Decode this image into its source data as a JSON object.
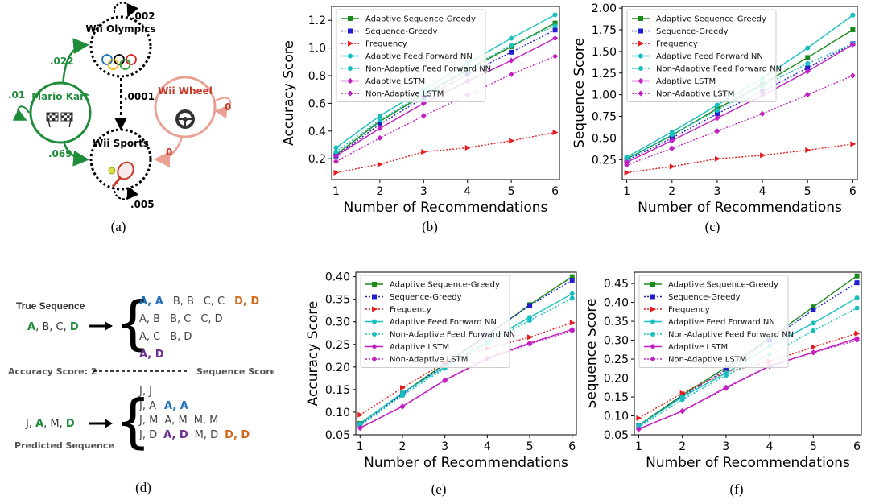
{
  "colors": {
    "green": "#1f8c3a",
    "salmon": "#e8a193",
    "red_label": "#c43b2b",
    "blue_pair": "#1f6fb5",
    "purple_pair": "#6b2f8c",
    "orange_pair": "#d2691e"
  },
  "panel_a": {
    "caption": "(a)",
    "nodes": {
      "mario": "Mario Kart",
      "olympics": "Wii Olympics",
      "sports": "Wii Sports",
      "wheel": "Wii Wheel"
    },
    "edges": {
      "mario_self": ".01",
      "mario_to_olympics": ".022",
      "mario_to_sports": ".069",
      "olympics_self": ".002",
      "olympics_to_sports": ".0001",
      "sports_self": ".005",
      "wheel_self": "0",
      "wheel_to_sports": "0"
    }
  },
  "panel_d": {
    "caption": "(d)",
    "true_label": "True Sequence",
    "true_seq": [
      "A",
      ", B, C, ",
      "D"
    ],
    "accuracy_score": "Accuracy Score: 2",
    "sequence_score": "Sequence Score: 3",
    "predicted_label": "Predicted Sequence",
    "pred_seq": [
      "J, ",
      "A",
      ", M, ",
      "D"
    ],
    "true_pairs": {
      "row1": [
        "A, A",
        "B, B",
        "C, C",
        "D, D"
      ],
      "row2": [
        "A, B",
        "B, C",
        "C, D"
      ],
      "row3": [
        "A, C",
        "B, D"
      ],
      "row4": [
        "A, D"
      ]
    },
    "pred_pairs": {
      "row1": [
        "J, J"
      ],
      "row2": [
        "J, A",
        "A, A"
      ],
      "row3": [
        "J, M",
        "A, M",
        "M, M"
      ],
      "row4": [
        "J, D",
        "A, D",
        "M, D",
        "D, D"
      ]
    }
  },
  "chart_data": [
    {
      "id": "b",
      "caption": "(b)",
      "type": "line",
      "xlabel": "Number of Recommendations",
      "ylabel": "Accuracy Score",
      "x": [
        1,
        2,
        3,
        4,
        5,
        6
      ],
      "xlim": [
        0.9,
        6.1
      ],
      "ylim": [
        0.05,
        1.3
      ],
      "yticks": [
        0.2,
        0.4,
        0.6,
        0.8,
        1.0,
        1.2
      ],
      "yticklabels": [
        "0.2",
        "0.4",
        "0.6",
        "0.8",
        "1.0",
        "1.2"
      ],
      "legend": "top-left",
      "series": [
        {
          "name": "Adaptive Sequence-Greedy",
          "color": "#1a8a1a",
          "dash": false,
          "marker": "square",
          "values": [
            0.23,
            0.47,
            0.66,
            0.84,
            1.01,
            1.18
          ]
        },
        {
          "name": "Sequence-Greedy",
          "color": "#1f1fd1",
          "dash": true,
          "marker": "square",
          "values": [
            0.22,
            0.45,
            0.64,
            0.81,
            0.97,
            1.13
          ]
        },
        {
          "name": "Frequency",
          "color": "#e41a1c",
          "dash": true,
          "marker": "triangle",
          "values": [
            0.1,
            0.16,
            0.25,
            0.28,
            0.33,
            0.39
          ]
        },
        {
          "name": "Adaptive Feed Forward NN",
          "color": "#17bfbf",
          "dash": false,
          "marker": "circle",
          "values": [
            0.28,
            0.51,
            0.7,
            0.89,
            1.07,
            1.24
          ]
        },
        {
          "name": "Non-Adaptive Feed Forward NN",
          "color": "#17bfbf",
          "dash": true,
          "marker": "circle",
          "values": [
            0.25,
            0.48,
            0.67,
            0.85,
            1.02,
            1.16
          ]
        },
        {
          "name": "Adaptive LSTM",
          "color": "#c21fc2",
          "dash": false,
          "marker": "diamond",
          "values": [
            0.22,
            0.42,
            0.6,
            0.76,
            0.91,
            1.07
          ]
        },
        {
          "name": "Non-Adaptive LSTM",
          "color": "#c21fc2",
          "dash": true,
          "marker": "diamond",
          "values": [
            0.18,
            0.35,
            0.51,
            0.66,
            0.81,
            0.94
          ]
        }
      ]
    },
    {
      "id": "c",
      "caption": "(c)",
      "type": "line",
      "xlabel": "Number of Recommendations",
      "ylabel": "Sequence Score",
      "x": [
        1,
        2,
        3,
        4,
        5,
        6
      ],
      "xlim": [
        0.9,
        6.1
      ],
      "ylim": [
        0.02,
        2.02
      ],
      "yticks": [
        0.25,
        0.5,
        0.75,
        1.0,
        1.25,
        1.5,
        1.75,
        2.0
      ],
      "yticklabels": [
        "0.25",
        "0.50",
        "0.75",
        "1.00",
        "1.25",
        "1.50",
        "1.75",
        "2.00"
      ],
      "legend": "top-left",
      "series": [
        {
          "name": "Adaptive Sequence-Greedy",
          "color": "#1a8a1a",
          "dash": false,
          "marker": "square",
          "values": [
            0.26,
            0.53,
            0.84,
            1.12,
            1.43,
            1.75
          ]
        },
        {
          "name": "Sequence-Greedy",
          "color": "#1f1fd1",
          "dash": true,
          "marker": "square",
          "values": [
            0.24,
            0.5,
            0.78,
            1.04,
            1.31,
            1.59
          ]
        },
        {
          "name": "Frequency",
          "color": "#e41a1c",
          "dash": true,
          "marker": "triangle",
          "values": [
            0.1,
            0.17,
            0.26,
            0.3,
            0.36,
            0.43
          ]
        },
        {
          "name": "Adaptive Feed Forward NN",
          "color": "#17bfbf",
          "dash": false,
          "marker": "circle",
          "values": [
            0.28,
            0.57,
            0.88,
            1.19,
            1.54,
            1.92
          ]
        },
        {
          "name": "Non-Adaptive Feed Forward NN",
          "color": "#17bfbf",
          "dash": true,
          "marker": "circle",
          "values": [
            0.25,
            0.54,
            0.82,
            1.1,
            1.36,
            1.59
          ]
        },
        {
          "name": "Adaptive LSTM",
          "color": "#c21fc2",
          "dash": false,
          "marker": "diamond",
          "values": [
            0.22,
            0.47,
            0.73,
            0.99,
            1.27,
            1.58
          ]
        },
        {
          "name": "Non-Adaptive LSTM",
          "color": "#c21fc2",
          "dash": true,
          "marker": "diamond",
          "values": [
            0.19,
            0.38,
            0.58,
            0.78,
            1.0,
            1.22
          ]
        }
      ]
    },
    {
      "id": "e",
      "caption": "(e)",
      "type": "line",
      "xlabel": "Number of Recommendations",
      "ylabel": "Accuracy Score",
      "x": [
        1,
        2,
        3,
        4,
        5,
        6
      ],
      "xlim": [
        0.9,
        6.1
      ],
      "ylim": [
        0.05,
        0.41
      ],
      "yticks": [
        0.05,
        0.1,
        0.15,
        0.2,
        0.25,
        0.3,
        0.35,
        0.4
      ],
      "yticklabels": [
        "0.05",
        "0.10",
        "0.15",
        "0.20",
        "0.25",
        "0.30",
        "0.35",
        "0.40"
      ],
      "legend": "top-left",
      "series": [
        {
          "name": "Adaptive Sequence-Greedy",
          "color": "#1a8a1a",
          "dash": false,
          "marker": "square",
          "values": [
            0.075,
            0.142,
            0.207,
            0.27,
            0.338,
            0.4
          ]
        },
        {
          "name": "Sequence-Greedy",
          "color": "#1f1fd1",
          "dash": true,
          "marker": "square",
          "values": [
            0.073,
            0.14,
            0.205,
            0.272,
            0.336,
            0.392
          ]
        },
        {
          "name": "Frequency",
          "color": "#e41a1c",
          "dash": true,
          "marker": "triangle",
          "values": [
            0.094,
            0.154,
            0.21,
            0.241,
            0.266,
            0.298
          ]
        },
        {
          "name": "Adaptive Feed Forward NN",
          "color": "#17bfbf",
          "dash": false,
          "marker": "circle",
          "values": [
            0.074,
            0.143,
            0.2,
            0.256,
            0.31,
            0.362
          ]
        },
        {
          "name": "Non-Adaptive Feed Forward NN",
          "color": "#17bfbf",
          "dash": true,
          "marker": "circle",
          "values": [
            0.07,
            0.137,
            0.197,
            0.252,
            0.303,
            0.352
          ]
        },
        {
          "name": "Adaptive LSTM",
          "color": "#c21fc2",
          "dash": false,
          "marker": "diamond",
          "values": [
            0.065,
            0.113,
            0.171,
            0.219,
            0.253,
            0.283
          ]
        },
        {
          "name": "Non-Adaptive LSTM",
          "color": "#c21fc2",
          "dash": true,
          "marker": "diamond",
          "values": [
            0.065,
            0.112,
            0.17,
            0.218,
            0.251,
            0.28
          ]
        }
      ]
    },
    {
      "id": "f",
      "caption": "(f)",
      "type": "line",
      "xlabel": "Number of Recommendations",
      "ylabel": "Sequence Score",
      "x": [
        1,
        2,
        3,
        4,
        5,
        6
      ],
      "xlim": [
        0.9,
        6.1
      ],
      "ylim": [
        0.05,
        0.48
      ],
      "yticks": [
        0.05,
        0.1,
        0.15,
        0.2,
        0.25,
        0.3,
        0.35,
        0.4,
        0.45
      ],
      "yticklabels": [
        "0.05",
        "0.10",
        "0.15",
        "0.20",
        "0.25",
        "0.30",
        "0.35",
        "0.40",
        "0.45"
      ],
      "legend": "top-left",
      "series": [
        {
          "name": "Adaptive Sequence-Greedy",
          "color": "#1a8a1a",
          "dash": false,
          "marker": "square",
          "values": [
            0.075,
            0.155,
            0.228,
            0.305,
            0.388,
            0.47
          ]
        },
        {
          "name": "Sequence-Greedy",
          "color": "#1f1fd1",
          "dash": true,
          "marker": "square",
          "values": [
            0.073,
            0.152,
            0.222,
            0.3,
            0.38,
            0.452
          ]
        },
        {
          "name": "Frequency",
          "color": "#e41a1c",
          "dash": true,
          "marker": "triangle",
          "values": [
            0.094,
            0.16,
            0.216,
            0.244,
            0.282,
            0.318
          ]
        },
        {
          "name": "Adaptive Feed Forward NN",
          "color": "#17bfbf",
          "dash": false,
          "marker": "circle",
          "values": [
            0.074,
            0.15,
            0.213,
            0.285,
            0.345,
            0.412
          ]
        },
        {
          "name": "Non-Adaptive Feed Forward NN",
          "color": "#17bfbf",
          "dash": true,
          "marker": "circle",
          "values": [
            0.07,
            0.143,
            0.207,
            0.262,
            0.325,
            0.385
          ]
        },
        {
          "name": "Adaptive LSTM",
          "color": "#c21fc2",
          "dash": false,
          "marker": "diamond",
          "values": [
            0.065,
            0.113,
            0.175,
            0.232,
            0.268,
            0.305
          ]
        },
        {
          "name": "Non-Adaptive LSTM",
          "color": "#c21fc2",
          "dash": true,
          "marker": "diamond",
          "values": [
            0.065,
            0.112,
            0.173,
            0.231,
            0.267,
            0.3
          ]
        }
      ]
    }
  ]
}
